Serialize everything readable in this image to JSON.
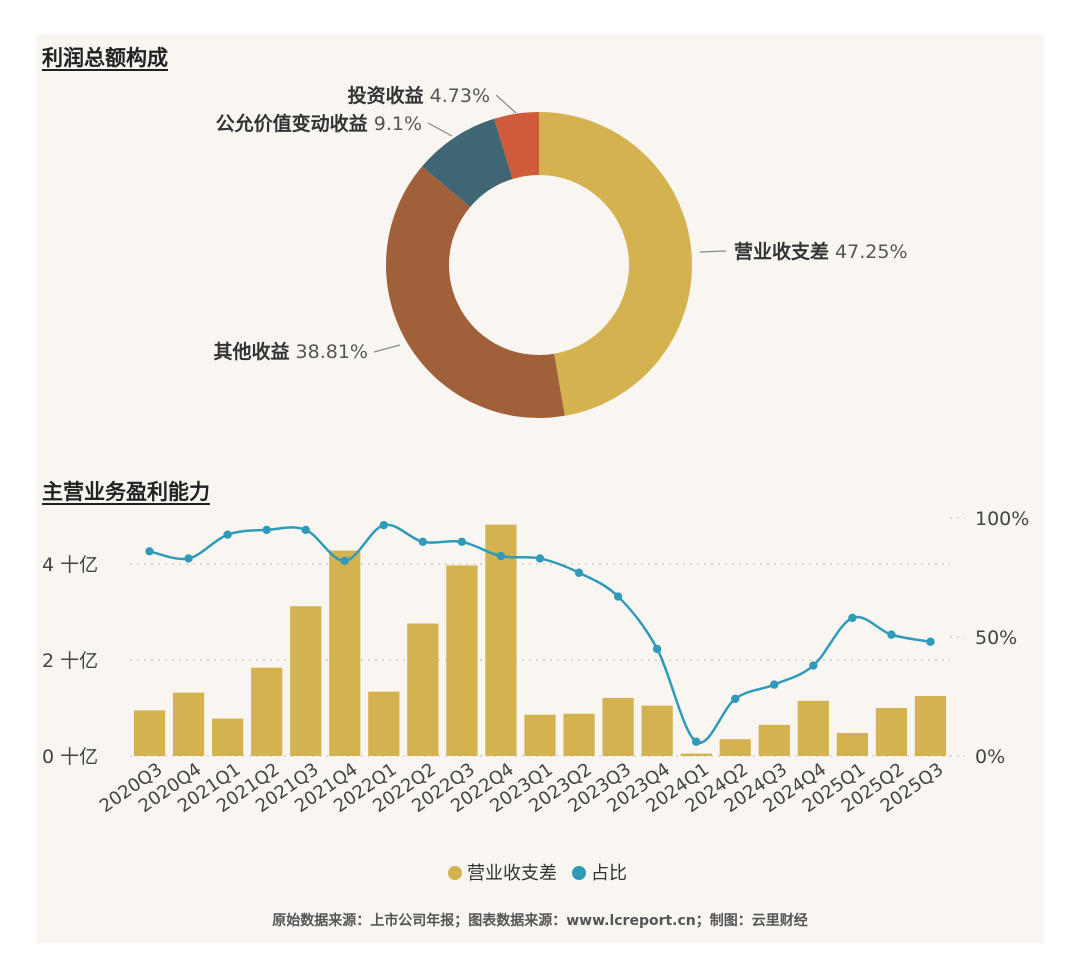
{
  "donut": {
    "title": "利润总额构成",
    "chart_data": {
      "type": "pie",
      "slices": [
        {
          "label": "营业收支差",
          "value": 47.25,
          "display": "47.25%",
          "color": "#d4b24f"
        },
        {
          "label": "其他收益",
          "value": 38.81,
          "display": "38.81%",
          "color": "#a0603a"
        },
        {
          "label": "公允价值变动收益",
          "value": 9.1,
          "display": "9.1%",
          "color": "#3f6672"
        },
        {
          "label": "投资收益",
          "value": 4.73,
          "display": "4.73%",
          "color": "#cf5b3c"
        }
      ]
    }
  },
  "combo": {
    "title": "主营业务盈利能力",
    "chart_data": {
      "type": "bar",
      "categories": [
        "2020Q3",
        "2020Q4",
        "2021Q1",
        "2021Q2",
        "2021Q3",
        "2021Q4",
        "2022Q1",
        "2022Q2",
        "2022Q3",
        "2022Q4",
        "2023Q1",
        "2023Q2",
        "2023Q3",
        "2023Q4",
        "2024Q1",
        "2024Q2",
        "2024Q3",
        "2024Q4",
        "2025Q1",
        "2025Q2",
        "2025Q3"
      ],
      "series": [
        {
          "name": "营业收支差",
          "type": "bar",
          "axis": "left",
          "color": "#d4b24f",
          "values": [
            0.95,
            1.32,
            0.78,
            1.84,
            3.12,
            4.28,
            1.34,
            2.76,
            3.97,
            4.82,
            0.86,
            0.88,
            1.21,
            1.05,
            0.05,
            0.35,
            0.65,
            1.15,
            0.48,
            1.0,
            1.25
          ]
        },
        {
          "name": "占比",
          "type": "line",
          "axis": "right",
          "color": "#2f9bb9",
          "values": [
            86,
            83,
            93,
            95,
            95,
            82,
            97,
            90,
            90,
            84,
            83,
            77,
            67,
            45,
            6,
            24,
            30,
            38,
            58,
            51,
            48
          ]
        }
      ],
      "left_axis": {
        "ticks": [
          "0 十亿",
          "2 十亿",
          "4 十亿"
        ],
        "tick_values": [
          0,
          2,
          4
        ],
        "ylim": [
          0,
          5
        ]
      },
      "right_axis": {
        "ticks": [
          "0%",
          "50%",
          "100%"
        ],
        "tick_values": [
          0,
          50,
          100
        ],
        "ylim": [
          0,
          100
        ]
      },
      "legend": {
        "position": "bottom-center",
        "items": [
          "营业收支差",
          "占比"
        ]
      }
    }
  },
  "source_note": "原始数据来源：上市公司年报；图表数据来源：www.lcreport.cn；制图：云里财经"
}
